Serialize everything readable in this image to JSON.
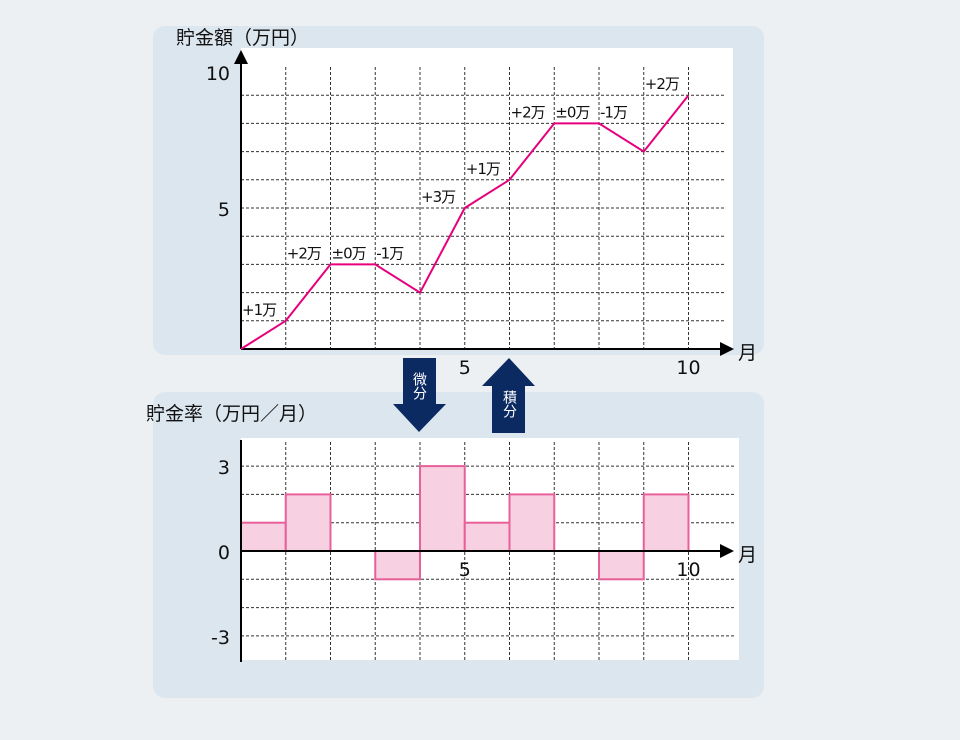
{
  "chart_data": [
    {
      "type": "line",
      "ylabel": "貯金額（万円）",
      "xlabel": "月",
      "x": [
        0,
        1,
        2,
        3,
        4,
        5,
        6,
        7,
        8,
        9,
        10
      ],
      "values": [
        0,
        1,
        3,
        3,
        2,
        5,
        6,
        8,
        8,
        7,
        9
      ],
      "annotations": [
        "+1万",
        "+2万",
        "±0万",
        "-1万",
        "+3万",
        "+1万",
        "+2万",
        "±0万",
        "-1万",
        "+2万"
      ],
      "xticks": [
        "5",
        "10"
      ],
      "yticks": [
        "5",
        "10"
      ],
      "xlim": [
        0,
        11
      ],
      "ylim": [
        0,
        10
      ],
      "grid": true,
      "color": "#e6007e"
    },
    {
      "type": "bar",
      "ylabel": "貯金率（万円／月）",
      "xlabel": "月",
      "categories": [
        1,
        2,
        3,
        4,
        5,
        6,
        7,
        8,
        9,
        10
      ],
      "values": [
        1,
        2,
        0,
        -1,
        3,
        1,
        2,
        0,
        -1,
        2
      ],
      "xticks": [
        "5",
        "10"
      ],
      "yticks": [
        "3",
        "0",
        "-3"
      ],
      "xlim": [
        0,
        11
      ],
      "ylim": [
        -4,
        3
      ],
      "grid": true,
      "fill": "#f7d0e2",
      "stroke": "#e8609a"
    }
  ],
  "arrows": {
    "down_label": "微分",
    "up_label": "積分",
    "color": "#0c2a62"
  }
}
